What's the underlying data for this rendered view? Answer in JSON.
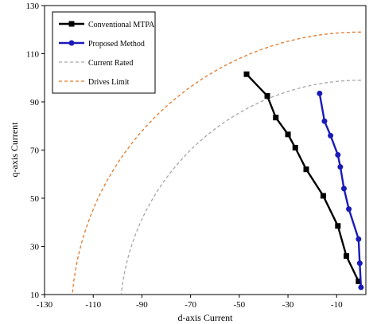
{
  "chart_data": {
    "type": "line",
    "xlabel": "d-axis Current",
    "ylabel": "q-axis Current",
    "xlim": [
      -130,
      2
    ],
    "ylim": [
      10,
      130
    ],
    "x_ticks": [
      "-130",
      "-110",
      "-90",
      "-70",
      "-50",
      "-30",
      "-10"
    ],
    "y_ticks": [
      "10",
      "30",
      "50",
      "70",
      "90",
      "110",
      "130"
    ],
    "grid": false,
    "legend_position": "top-left",
    "series": [
      {
        "name": "Conventional MTPA",
        "color": "#000000",
        "style": "solid",
        "marker": "square",
        "points": [
          [
            -47,
            101.5
          ],
          [
            -38.5,
            92.5
          ],
          [
            -35,
            83.5
          ],
          [
            -30,
            76.5
          ],
          [
            -27,
            71
          ],
          [
            -22.5,
            62
          ],
          [
            -15.5,
            51
          ],
          [
            -9.5,
            38.5
          ],
          [
            -6,
            26
          ],
          [
            -1,
            15.5
          ]
        ]
      },
      {
        "name": "Proposed Method",
        "color": "#1a1ab8",
        "style": "solid",
        "marker": "circle",
        "points": [
          [
            -17,
            93.5
          ],
          [
            -15,
            82
          ],
          [
            -12.5,
            76
          ],
          [
            -9.5,
            68
          ],
          [
            -8.5,
            63
          ],
          [
            -7,
            54
          ],
          [
            -5,
            45.5
          ],
          [
            -1,
            33
          ],
          [
            -0.5,
            23
          ],
          [
            0,
            13
          ]
        ]
      },
      {
        "name": "Current Rated",
        "color": "#a6a6a6",
        "style": "dashed",
        "marker": "none",
        "curve": "arc",
        "radius": 99
      },
      {
        "name": "Drives Limit",
        "color": "#e07b2e",
        "style": "dashed",
        "marker": "none",
        "curve": "arc",
        "radius": 119
      }
    ]
  }
}
